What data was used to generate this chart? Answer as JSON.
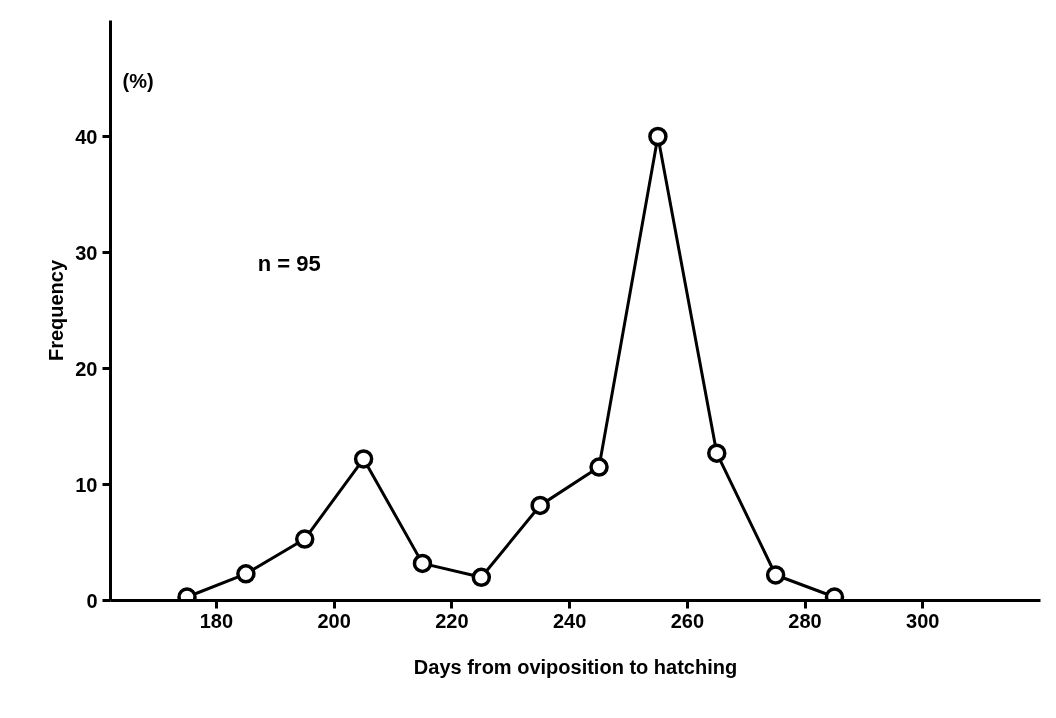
{
  "chart_data": {
    "type": "line",
    "xlabel": "Days from oviposition to hatching",
    "ylabel": "Frequency",
    "annotations": [
      "(%)",
      "n = 95"
    ],
    "x": [
      175,
      185,
      195,
      205,
      215,
      225,
      235,
      245,
      255,
      265,
      275,
      285
    ],
    "series": [
      {
        "color": "#000000",
        "values": [
          0.3,
          2.3,
          5.3,
          12.2,
          3.2,
          2.0,
          8.2,
          11.5,
          40,
          12.7,
          2.2,
          0.3
        ]
      }
    ],
    "xlim": [
      162,
      320
    ],
    "ylim": [
      0,
      50
    ],
    "xticks": [
      180,
      200,
      220,
      240,
      260,
      280,
      300
    ],
    "yticks": [
      0,
      10,
      20,
      30,
      40
    ],
    "grid": false,
    "marker": "circle",
    "line_style": "solid"
  }
}
